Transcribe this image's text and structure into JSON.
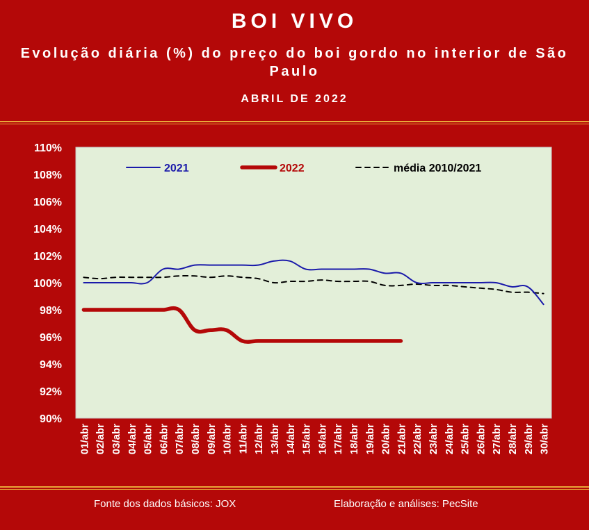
{
  "header": {
    "title": "BOI VIVO",
    "subtitle": "Evolução diária (%) do preço do boi gordo no interior de São Paulo",
    "period": "ABRIL DE 2022"
  },
  "footer": {
    "source": "Fonte dos dados básicos: JOX",
    "credit": "Elaboração e análises: PecSite"
  },
  "colors": {
    "background": "#b40808",
    "plot_area": "#e3efd9",
    "accent_line": "#e8a83a",
    "series_2021": "#1a1aaa",
    "series_2022": "#b40808",
    "series_media": "#000000"
  },
  "chart_data": {
    "type": "line",
    "categories": [
      "01/abr",
      "02/abr",
      "03/abr",
      "04/abr",
      "05/abr",
      "06/abr",
      "07/abr",
      "08/abr",
      "09/abr",
      "10/abr",
      "11/abr",
      "12/abr",
      "13/abr",
      "14/abr",
      "15/abr",
      "16/abr",
      "17/abr",
      "18/abr",
      "19/abr",
      "20/abr",
      "21/abr",
      "22/abr",
      "23/abr",
      "24/abr",
      "25/abr",
      "26/abr",
      "27/abr",
      "28/abr",
      "29/abr",
      "30/abr"
    ],
    "y_tick_labels": [
      "90%",
      "92%",
      "94%",
      "96%",
      "98%",
      "100%",
      "102%",
      "104%",
      "106%",
      "108%",
      "110%"
    ],
    "ylim": [
      90,
      110
    ],
    "y_unit": "%",
    "legend_position": "top",
    "grid": false,
    "series": [
      {
        "name": "2021",
        "style": "solid-thin",
        "color": "#1a1aaa",
        "values": [
          100.0,
          100.0,
          100.0,
          100.0,
          100.0,
          101.0,
          101.0,
          101.3,
          101.3,
          101.3,
          101.3,
          101.3,
          101.6,
          101.6,
          101.0,
          101.0,
          101.0,
          101.0,
          101.0,
          100.7,
          100.7,
          100.0,
          100.0,
          100.0,
          100.0,
          100.0,
          100.0,
          99.7,
          99.7,
          98.4
        ]
      },
      {
        "name": "2022",
        "style": "solid-thick",
        "color": "#b40808",
        "values": [
          98.0,
          98.0,
          98.0,
          98.0,
          98.0,
          98.0,
          98.0,
          96.5,
          96.5,
          96.5,
          95.7,
          95.7,
          95.7,
          95.7,
          95.7,
          95.7,
          95.7,
          95.7,
          95.7,
          95.7,
          95.7,
          null,
          null,
          null,
          null,
          null,
          null,
          null,
          null,
          null
        ]
      },
      {
        "name": "média 2010/2021",
        "style": "dashed",
        "color": "#000000",
        "values": [
          100.4,
          100.3,
          100.4,
          100.4,
          100.4,
          100.4,
          100.5,
          100.5,
          100.4,
          100.5,
          100.4,
          100.3,
          100.0,
          100.1,
          100.1,
          100.2,
          100.1,
          100.1,
          100.1,
          99.8,
          99.8,
          99.9,
          99.8,
          99.8,
          99.7,
          99.6,
          99.5,
          99.3,
          99.3,
          99.2
        ]
      }
    ]
  }
}
